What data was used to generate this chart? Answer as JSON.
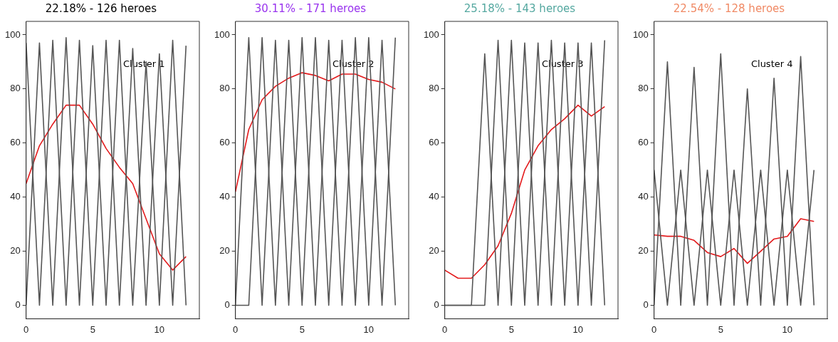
{
  "chart_data": [
    {
      "type": "line",
      "title": "22.18% - 126 heroes",
      "x": [
        0,
        1,
        2,
        3,
        4,
        5,
        6,
        7,
        8,
        9,
        10,
        11,
        12
      ],
      "xlim": [
        0,
        13
      ],
      "ylim": [
        -5,
        105
      ],
      "xticks": [
        0,
        5,
        10
      ],
      "yticks": [
        0,
        20,
        40,
        60,
        80,
        100
      ],
      "grid": false,
      "legend": false,
      "marker": "none",
      "annotations": [
        "Cluster 1"
      ],
      "series": [
        {
          "color": "#555555",
          "values": [
            0,
            97,
            0,
            99,
            0,
            96,
            0,
            98,
            0,
            90,
            0,
            98,
            0
          ]
        },
        {
          "color": "#555555",
          "values": [
            97,
            0,
            98,
            0,
            98,
            0,
            98,
            0,
            95,
            0,
            93,
            0,
            96
          ]
        },
        {
          "color": "#e31a1c",
          "values": [
            45,
            59,
            67,
            74,
            74,
            67,
            58,
            51,
            45,
            32,
            19,
            13,
            18
          ]
        }
      ]
    },
    {
      "type": "line",
      "title": "30.11% - 171 heroes",
      "x": [
        0,
        1,
        2,
        3,
        4,
        5,
        6,
        7,
        8,
        9,
        10,
        11,
        12
      ],
      "xlim": [
        0,
        13
      ],
      "ylim": [
        -5,
        105
      ],
      "xticks": [
        0,
        5,
        10
      ],
      "yticks": [
        0,
        20,
        40,
        60,
        80,
        100
      ],
      "grid": false,
      "legend": false,
      "marker": "none",
      "annotations": [
        "Cluster 2"
      ],
      "series": [
        {
          "color": "#555555",
          "values": [
            0,
            99,
            0,
            98,
            0,
            99,
            0,
            98,
            0,
            99,
            0,
            98,
            0
          ]
        },
        {
          "color": "#555555",
          "values": [
            0,
            0,
            99,
            0,
            98,
            0,
            99,
            0,
            98,
            0,
            99,
            0,
            99
          ]
        },
        {
          "color": "#e31a1c",
          "values": [
            42,
            65,
            76,
            81,
            84,
            86,
            85,
            83,
            85.5,
            85.5,
            83.5,
            82.5,
            80
          ]
        }
      ]
    },
    {
      "type": "line",
      "title": "25.18% - 143 heroes",
      "x": [
        0,
        1,
        2,
        3,
        4,
        5,
        6,
        7,
        8,
        9,
        10,
        11,
        12
      ],
      "xlim": [
        0,
        13
      ],
      "ylim": [
        -5,
        105
      ],
      "xticks": [
        0,
        5,
        10
      ],
      "yticks": [
        0,
        20,
        40,
        60,
        80,
        100
      ],
      "grid": false,
      "legend": false,
      "marker": "none",
      "annotations": [
        "Cluster 3"
      ],
      "series": [
        {
          "color": "#555555",
          "values": [
            0,
            0,
            0,
            93,
            0,
            98,
            0,
            97,
            0,
            97,
            0,
            97,
            0
          ]
        },
        {
          "color": "#555555",
          "values": [
            0,
            0,
            0,
            0,
            98,
            0,
            97,
            0,
            98,
            0,
            97,
            0,
            98
          ]
        },
        {
          "color": "#e31a1c",
          "values": [
            13,
            10,
            10,
            15,
            22,
            34,
            50,
            59,
            65,
            69,
            74,
            70,
            73.5
          ]
        }
      ]
    },
    {
      "type": "line",
      "title": "22.54% - 128 heroes",
      "x": [
        0,
        1,
        2,
        3,
        4,
        5,
        6,
        7,
        8,
        9,
        10,
        11,
        12
      ],
      "xlim": [
        0,
        13
      ],
      "ylim": [
        -5,
        105
      ],
      "xticks": [
        0,
        5,
        10
      ],
      "yticks": [
        0,
        20,
        40,
        60,
        80,
        100
      ],
      "grid": false,
      "legend": false,
      "marker": "none",
      "annotations": [
        "Cluster 4"
      ],
      "series": [
        {
          "color": "#555555",
          "values": [
            0,
            90,
            0,
            88,
            0,
            93,
            0,
            80,
            0,
            84,
            0,
            92,
            0
          ]
        },
        {
          "color": "#555555",
          "values": [
            50,
            0,
            50,
            0,
            50,
            0,
            50,
            0,
            50,
            0,
            50,
            0,
            50
          ]
        },
        {
          "color": "#e31a1c",
          "values": [
            26,
            25.5,
            25.5,
            24,
            19.5,
            18,
            21,
            15.5,
            20,
            24.5,
            25.5,
            32,
            31
          ]
        }
      ]
    }
  ]
}
